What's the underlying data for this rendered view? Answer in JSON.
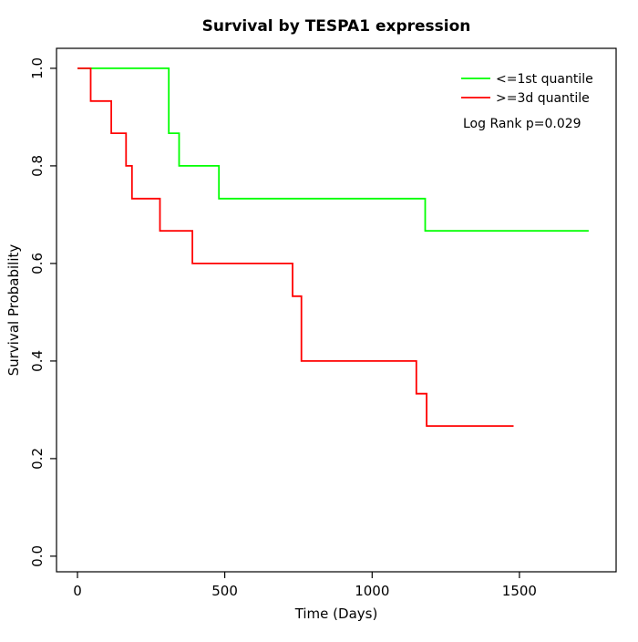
{
  "chart_data": {
    "type": "line",
    "subtype": "kaplan-meier-step",
    "title": "Survival by TESPA1 expression",
    "xlabel": "Time (Days)",
    "ylabel": "Survival Probability",
    "xlim": [
      -71,
      1828
    ],
    "ylim": [
      -0.032,
      1.041
    ],
    "xticks": [
      0,
      500,
      1000,
      1500
    ],
    "yticks": [
      0.0,
      0.2,
      0.4,
      0.6,
      0.8,
      1.0
    ],
    "grid": false,
    "legend_position": "top-right",
    "annotation": "Log Rank p=0.029",
    "series": [
      {
        "name": "<=1st quantile",
        "color": "#00ff00",
        "points": [
          [
            0,
            1.0
          ],
          [
            310,
            0.867
          ],
          [
            345,
            0.8
          ],
          [
            480,
            0.733
          ],
          [
            1180,
            0.667
          ],
          [
            1735,
            0.667
          ]
        ]
      },
      {
        "name": ">=3d quantile",
        "color": "#ff0000",
        "points": [
          [
            0,
            1.0
          ],
          [
            45,
            0.933
          ],
          [
            115,
            0.867
          ],
          [
            165,
            0.8
          ],
          [
            185,
            0.733
          ],
          [
            280,
            0.667
          ],
          [
            390,
            0.6
          ],
          [
            730,
            0.533
          ],
          [
            760,
            0.4
          ],
          [
            1150,
            0.333
          ],
          [
            1185,
            0.267
          ],
          [
            1480,
            0.267
          ]
        ]
      }
    ]
  }
}
